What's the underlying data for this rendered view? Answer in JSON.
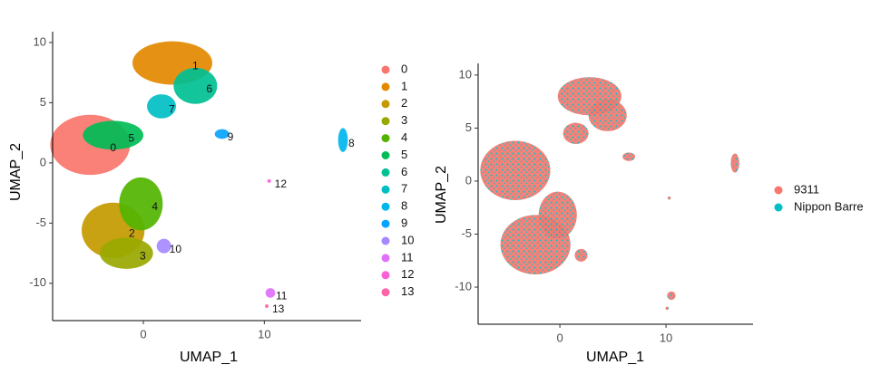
{
  "chart_data": [
    {
      "type": "scatter",
      "xlabel": "UMAP_1",
      "ylabel": "UMAP_2",
      "xlim": [
        -7.5,
        18
      ],
      "ylim": [
        -13.1,
        10.9
      ],
      "xticks": [
        0,
        10
      ],
      "yticks": [
        -10,
        -5,
        0,
        5,
        10
      ],
      "series": [
        {
          "name": "0",
          "color": "#F8766D",
          "center": [
            -4.4,
            1.5
          ],
          "radius": [
            3.3,
            2.5
          ]
        },
        {
          "name": "1",
          "color": "#E38900",
          "center": [
            2.4,
            8.3
          ],
          "radius": [
            3.3,
            1.8
          ]
        },
        {
          "name": "2",
          "color": "#C49A00",
          "center": [
            -2.5,
            -5.6
          ],
          "radius": [
            2.6,
            2.3
          ]
        },
        {
          "name": "3",
          "color": "#99A800",
          "center": [
            -1.4,
            -7.5
          ],
          "radius": [
            2.2,
            1.3
          ]
        },
        {
          "name": "4",
          "color": "#53B400",
          "center": [
            -0.2,
            -3.4
          ],
          "radius": [
            1.8,
            2.2
          ]
        },
        {
          "name": "5",
          "color": "#00BC56",
          "center": [
            -2.5,
            2.3
          ],
          "radius": [
            2.5,
            1.2
          ]
        },
        {
          "name": "6",
          "color": "#00C094",
          "center": [
            4.3,
            6.4
          ],
          "radius": [
            1.8,
            1.5
          ]
        },
        {
          "name": "7",
          "color": "#00BFC4",
          "center": [
            1.5,
            4.7
          ],
          "radius": [
            1.2,
            1.0
          ]
        },
        {
          "name": "8",
          "color": "#00B6EB",
          "center": [
            16.5,
            1.9
          ],
          "radius": [
            0.4,
            1.0
          ]
        },
        {
          "name": "9",
          "color": "#06A4FF",
          "center": [
            6.5,
            2.4
          ],
          "radius": [
            0.6,
            0.4
          ]
        },
        {
          "name": "10",
          "color": "#A58AFF",
          "center": [
            1.7,
            -6.9
          ],
          "radius": [
            0.6,
            0.6
          ]
        },
        {
          "name": "11",
          "color": "#DF70F8",
          "center": [
            10.5,
            -10.8
          ],
          "radius": [
            0.4,
            0.4
          ]
        },
        {
          "name": "12",
          "color": "#FB61D7",
          "center": [
            10.4,
            -1.5
          ],
          "radius": [
            0.15,
            0.15
          ]
        },
        {
          "name": "13",
          "color": "#FF66A8",
          "center": [
            10.2,
            -11.9
          ],
          "radius": [
            0.15,
            0.15
          ]
        }
      ]
    },
    {
      "type": "scatter",
      "xlabel": "UMAP_1",
      "ylabel": "UMAP_2",
      "xlim": [
        -7.7,
        18.2
      ],
      "ylim": [
        -13.5,
        11.1
      ],
      "xticks": [
        0,
        10
      ],
      "yticks": [
        -10,
        -5,
        0,
        5,
        10
      ],
      "series": [
        {
          "name": "9311",
          "color": "#F8766D"
        },
        {
          "name": "Nippon Barre",
          "color": "#00BFC4"
        }
      ],
      "regions": [
        {
          "center": [
            -4.2,
            1.0
          ],
          "radius": [
            3.3,
            2.8
          ]
        },
        {
          "center": [
            2.8,
            8.0
          ],
          "radius": [
            3.0,
            1.8
          ]
        },
        {
          "center": [
            -2.3,
            -6.0
          ],
          "radius": [
            3.3,
            2.8
          ]
        },
        {
          "center": [
            -0.2,
            -3.2
          ],
          "radius": [
            1.8,
            2.2
          ]
        },
        {
          "center": [
            4.5,
            6.2
          ],
          "radius": [
            1.8,
            1.5
          ]
        },
        {
          "center": [
            1.5,
            4.5
          ],
          "radius": [
            1.2,
            1.0
          ]
        },
        {
          "center": [
            16.5,
            1.7
          ],
          "radius": [
            0.4,
            0.9
          ]
        },
        {
          "center": [
            6.5,
            2.3
          ],
          "radius": [
            0.6,
            0.4
          ]
        },
        {
          "center": [
            2.0,
            -7.0
          ],
          "radius": [
            0.6,
            0.6
          ]
        },
        {
          "center": [
            10.5,
            -10.8
          ],
          "radius": [
            0.4,
            0.4
          ]
        },
        {
          "center": [
            10.3,
            -1.6
          ],
          "radius": [
            0.15,
            0.15
          ]
        },
        {
          "center": [
            10.1,
            -12.0
          ],
          "radius": [
            0.15,
            0.15
          ]
        }
      ]
    }
  ]
}
